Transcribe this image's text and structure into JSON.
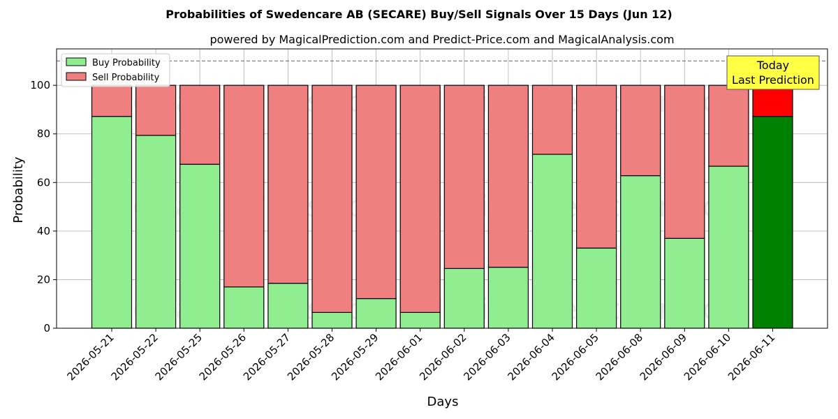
{
  "chart_data": {
    "type": "bar",
    "stacked": true,
    "title": "Probabilities of Swedencare AB (SECARE) Buy/Sell Signals Over 15 Days (Jun 12)",
    "subtitle": "powered by MagicalPrediction.com and Predict-Price.com and MagicalAnalysis.com",
    "xlabel": "Days",
    "ylabel": "Probability",
    "ylim": [
      0,
      115
    ],
    "yticks": [
      0,
      20,
      40,
      60,
      80,
      100
    ],
    "grid": true,
    "legend_position": "top-left",
    "categories": [
      "2026-05-21",
      "2026-05-22",
      "2026-05-25",
      "2026-05-26",
      "2026-05-27",
      "2026-05-28",
      "2026-05-29",
      "2026-06-01",
      "2026-06-02",
      "2026-06-03",
      "2026-06-04",
      "2026-06-05",
      "2026-06-08",
      "2026-06-09",
      "2026-06-10",
      "2026-06-11"
    ],
    "series": [
      {
        "name": "Buy Probability",
        "color": "#90ee90",
        "values": [
          87.2,
          79.4,
          67.5,
          17.0,
          18.5,
          6.5,
          12.2,
          6.5,
          24.6,
          25.1,
          71.6,
          33.0,
          62.8,
          37.0,
          66.7,
          87.2
        ]
      },
      {
        "name": "Sell Probability",
        "color": "#f08080",
        "values": [
          12.8,
          20.6,
          32.5,
          83.0,
          81.5,
          93.5,
          87.8,
          93.5,
          75.4,
          74.9,
          28.4,
          67.0,
          37.2,
          63.0,
          33.3,
          12.8
        ]
      }
    ],
    "highlight": {
      "index": 15,
      "buy_color": "#008000",
      "sell_color": "#ff0000"
    },
    "reference_line": {
      "y": 110,
      "style": "dashed",
      "color": "#808080"
    },
    "annotation": {
      "line1": "Today",
      "line2": "Last Prediction",
      "background": "#ffff44"
    },
    "watermarks": [
      "MagicalAnalysis.com",
      "MagicalPrediction.com"
    ]
  }
}
